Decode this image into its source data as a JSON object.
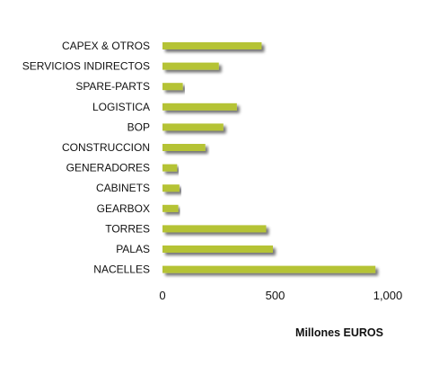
{
  "chart_data": {
    "type": "bar",
    "orientation": "horizontal",
    "categories": [
      "CAPEX & OTROS",
      "SERVICIOS INDIRECTOS",
      "SPARE-PARTS",
      "LOGISTICA",
      "BOP",
      "CONSTRUCCION",
      "GENERADORES",
      "CABINETS",
      "GEARBOX",
      "TORRES",
      "PALAS",
      "NACELLES"
    ],
    "values": [
      440,
      250,
      90,
      330,
      270,
      190,
      65,
      75,
      70,
      460,
      490,
      945
    ],
    "xticks": [
      0,
      500,
      1000
    ],
    "xtick_labels": [
      "0",
      "500",
      "1,000"
    ],
    "xlim": [
      0,
      1000
    ],
    "xlabel": "Millones EUROS",
    "ylabel": "",
    "title": "",
    "grid": false,
    "bar_color": "#b5c334",
    "shadow_color": "#9a9a9a"
  }
}
